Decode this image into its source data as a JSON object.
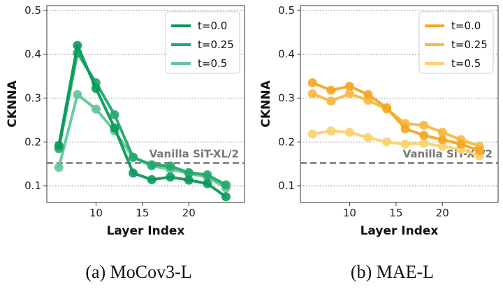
{
  "chart_data": [
    {
      "type": "line",
      "title": "",
      "caption": "(a) MoCov3-L",
      "xlabel": "Layer Index",
      "ylabel": "CKNNA",
      "xlim": [
        4.7,
        26
      ],
      "ylim": [
        0.062,
        0.511
      ],
      "xticks": [
        10,
        15,
        20
      ],
      "yticks": [
        0.1,
        0.2,
        0.3,
        0.4,
        0.5
      ],
      "grid": "horizontal dotted",
      "legend_placement": "top-right",
      "x": [
        6,
        8,
        10,
        12,
        14,
        16,
        18,
        20,
        22,
        24
      ],
      "series": [
        {
          "name": "t=0.0",
          "color": "#089a5a",
          "values": [
            0.192,
            0.42,
            0.322,
            0.232,
            0.129,
            0.114,
            0.12,
            0.113,
            0.105,
            0.075
          ]
        },
        {
          "name": "t=0.25",
          "color": "#22a86c",
          "values": [
            0.185,
            0.403,
            0.335,
            0.262,
            0.165,
            0.148,
            0.145,
            0.13,
            0.125,
            0.102
          ]
        },
        {
          "name": "t=0.5",
          "color": "#62c79b",
          "values": [
            0.142,
            0.308,
            0.275,
            0.225,
            0.165,
            0.145,
            0.138,
            0.128,
            0.12,
            0.095
          ]
        }
      ],
      "baseline": {
        "label": "Vanilla SiT-XL/2",
        "value": 0.152
      }
    },
    {
      "type": "line",
      "title": "",
      "caption": "(b) MAE-L",
      "xlabel": "Layer Index",
      "ylabel": "CKNNA",
      "xlim": [
        4.7,
        26
      ],
      "ylim": [
        0.062,
        0.511
      ],
      "xticks": [
        10,
        15,
        20
      ],
      "yticks": [
        0.1,
        0.2,
        0.3,
        0.4,
        0.5
      ],
      "grid": "horizontal dotted",
      "legend_placement": "top-right",
      "x": [
        6,
        8,
        10,
        12,
        14,
        16,
        18,
        20,
        22,
        24
      ],
      "series": [
        {
          "name": "t=0.0",
          "color": "#f5a623",
          "values": [
            0.335,
            0.318,
            0.327,
            0.308,
            0.278,
            0.23,
            0.215,
            0.205,
            0.195,
            0.18
          ]
        },
        {
          "name": "t=0.25",
          "color": "#f7b940",
          "values": [
            0.31,
            0.293,
            0.31,
            0.295,
            0.275,
            0.242,
            0.238,
            0.222,
            0.205,
            0.19
          ]
        },
        {
          "name": "t=0.5",
          "color": "#fad26e",
          "values": [
            0.218,
            0.225,
            0.222,
            0.21,
            0.2,
            0.195,
            0.197,
            0.19,
            0.183,
            0.168
          ]
        }
      ],
      "baseline": {
        "label": "Vanilla SiT-XL/2",
        "value": 0.152
      }
    }
  ]
}
